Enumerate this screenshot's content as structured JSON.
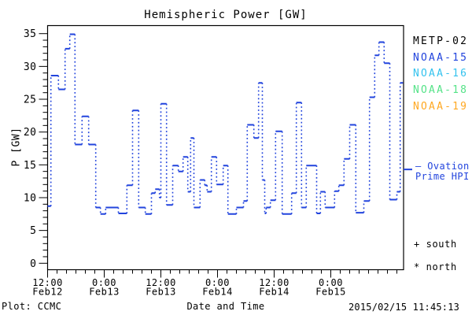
{
  "title": "Hemispheric Power [GW]",
  "footer": {
    "plot_source": "Plot: CCMC",
    "x_axis_title": "Date and Time",
    "timestamp": "2015/02/15 11:45:13"
  },
  "y_axis": {
    "label": "P [GW]",
    "ticks": [
      0,
      5,
      10,
      15,
      20,
      25,
      30,
      35
    ],
    "minor_tick_step_gw": 1
  },
  "x_axis": {
    "label": "Date and Time",
    "major_ticks": [
      {
        "time": "12:00",
        "date": "Feb12",
        "hours": 0
      },
      {
        "time": "0:00",
        "date": "Feb13",
        "hours": 12
      },
      {
        "time": "12:00",
        "date": "Feb13",
        "hours": 24
      },
      {
        "time": "0:00",
        "date": "Feb14",
        "hours": 36
      },
      {
        "time": "12:00",
        "date": "Feb14",
        "hours": 48
      },
      {
        "time": "0:00",
        "date": "Feb15",
        "hours": 60
      }
    ],
    "minor_tick_step_hours": 2
  },
  "legend": {
    "satellites": [
      {
        "label": "METP-02",
        "color": "#000000"
      },
      {
        "label": "NOAA-15",
        "color": "#2244dd"
      },
      {
        "label": "NOAA-16",
        "color": "#33c2ee"
      },
      {
        "label": "NOAA-18",
        "color": "#55e388"
      },
      {
        "label": "NOAA-19",
        "color": "#ffa822"
      }
    ],
    "ovation_note_line1": "– Ovation",
    "ovation_note_line2": "Prime HPI",
    "ovation_marker_gw": 14.3,
    "south_marker": "+ south",
    "north_marker": "* north"
  },
  "colors": {
    "line": "#2244dd",
    "frame": "#000000",
    "background": "#ffffff"
  },
  "chart_data": {
    "type": "line",
    "style": "step plot, solid horizontal segments with dotted vertical connectors",
    "title": "Hemispheric Power [GW]",
    "xlabel": "Date and Time",
    "ylabel": "P [GW]",
    "ylim": [
      0,
      35
    ],
    "x_start_label": "Feb12 12:00",
    "x_end_hours": 75.3,
    "time_unit": "hours since 2015-02-12 12:00",
    "legend_position": "right",
    "grid": false,
    "series": [
      {
        "name": "Ovation Prime HPI",
        "color": "#2244dd",
        "steps_t0_t1_gw": [
          [
            0,
            0.7,
            8.7
          ],
          [
            0.7,
            2.3,
            28.6
          ],
          [
            2.3,
            3.7,
            26.5
          ],
          [
            3.7,
            4.7,
            32.7
          ],
          [
            4.7,
            5.8,
            34.9
          ],
          [
            5.8,
            7.3,
            18.1
          ],
          [
            7.3,
            8.7,
            22.4
          ],
          [
            8.7,
            10.2,
            18.1
          ],
          [
            10.2,
            11.2,
            8.5
          ],
          [
            11.2,
            12.3,
            7.5
          ],
          [
            12.3,
            15,
            8.5
          ],
          [
            15,
            16.8,
            7.6
          ],
          [
            16.8,
            18,
            11.9
          ],
          [
            18,
            19.3,
            23.3
          ],
          [
            19.3,
            20.7,
            8.5
          ],
          [
            20.7,
            22,
            7.5
          ],
          [
            22,
            22.8,
            10.7
          ],
          [
            22.8,
            23.7,
            11.3
          ],
          [
            23.7,
            24,
            10
          ],
          [
            24,
            25.2,
            24.3
          ],
          [
            25.2,
            26.5,
            8.9
          ],
          [
            26.5,
            27.7,
            14.9
          ],
          [
            27.7,
            28.7,
            14
          ],
          [
            28.7,
            29.7,
            16.2
          ],
          [
            29.7,
            30.3,
            10.9
          ],
          [
            30.3,
            31,
            19.1
          ],
          [
            31,
            32.3,
            8.5
          ],
          [
            32.3,
            33.3,
            12.7
          ],
          [
            33.3,
            33.8,
            11.9
          ],
          [
            33.8,
            34.7,
            10.9
          ],
          [
            34.7,
            35.8,
            16.2
          ],
          [
            35.8,
            37.2,
            12
          ],
          [
            37.2,
            38.2,
            14.9
          ],
          [
            38.2,
            40,
            7.5
          ],
          [
            40,
            41.5,
            8.5
          ],
          [
            41.5,
            42.3,
            9.5
          ],
          [
            42.3,
            43.7,
            21.1
          ],
          [
            43.7,
            44.7,
            19.1
          ],
          [
            44.7,
            45.5,
            27.5
          ],
          [
            45.5,
            46,
            12.7
          ],
          [
            46,
            46.3,
            7.6
          ],
          [
            46.3,
            47.2,
            8.5
          ],
          [
            47.2,
            48.3,
            9.6
          ],
          [
            48.3,
            49.7,
            20.1
          ],
          [
            49.7,
            51.7,
            7.5
          ],
          [
            51.7,
            52.7,
            10.7
          ],
          [
            52.7,
            53.8,
            24.5
          ],
          [
            53.8,
            54.8,
            8.5
          ],
          [
            54.8,
            57,
            14.9
          ],
          [
            57,
            57.8,
            7.6
          ],
          [
            57.8,
            58.8,
            10.9
          ],
          [
            58.8,
            60.8,
            8.5
          ],
          [
            60.8,
            61.7,
            11
          ],
          [
            61.7,
            62.8,
            11.9
          ],
          [
            62.8,
            64,
            15.9
          ],
          [
            64,
            65.3,
            21.1
          ],
          [
            65.3,
            67,
            7.7
          ],
          [
            67,
            68.2,
            9.5
          ],
          [
            68.2,
            69.3,
            25.3
          ],
          [
            69.3,
            70.2,
            31.7
          ],
          [
            70.2,
            71.3,
            33.7
          ],
          [
            71.3,
            72.5,
            30.5
          ],
          [
            72.5,
            74,
            9.7
          ],
          [
            74,
            74.7,
            10.9
          ],
          [
            74.7,
            75.3,
            27.5
          ]
        ]
      }
    ]
  }
}
